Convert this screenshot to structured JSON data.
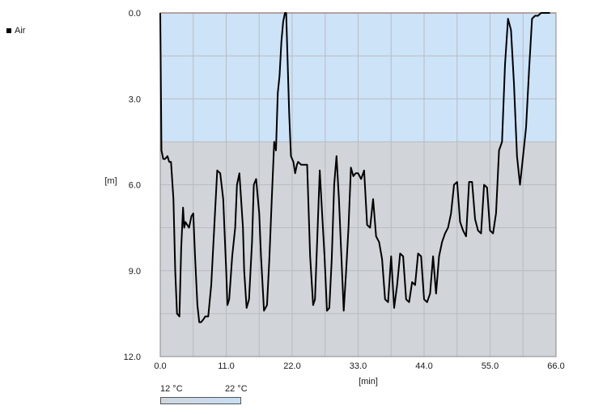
{
  "legend": {
    "series_name": "Air"
  },
  "temperature_scale": {
    "low_label": "12 °C",
    "high_label": "22 °C",
    "low_color": "#cfd6df",
    "high_color": "#c7def5"
  },
  "chart_data": {
    "type": "line",
    "title": "",
    "xlabel": "[min]",
    "ylabel": "[m]",
    "xlim": [
      0,
      66
    ],
    "ylim": [
      0,
      12
    ],
    "y_inverted": true,
    "x_ticks": [
      "0.0",
      "11.0",
      "22.0",
      "33.0",
      "44.0",
      "55.0",
      "66.0"
    ],
    "y_ticks": [
      "0.0",
      "3.0",
      "6.0",
      "9.0",
      "12.0"
    ],
    "grid": true,
    "legend_position": "top-left",
    "background_bands": [
      {
        "from_depth": 0,
        "to_depth": 4.5,
        "color": "#cde3f8"
      },
      {
        "from_depth": 4.5,
        "to_depth": 12,
        "color": "#d1d4d8"
      }
    ],
    "surface_line_color": "#e08a70",
    "series": [
      {
        "name": "Air",
        "color": "#000000",
        "x": [
          0,
          0.2,
          0.5,
          0.8,
          1.2,
          1.5,
          1.8,
          2.2,
          2.5,
          2.8,
          3.2,
          3.5,
          3.8,
          4.0,
          4.2,
          4.5,
          4.8,
          5.2,
          5.5,
          5.8,
          6.2,
          6.5,
          6.8,
          7.2,
          7.5,
          8.0,
          8.5,
          9.0,
          9.5,
          10.0,
          10.5,
          10.8,
          11.0,
          11.2,
          11.5,
          12.0,
          12.5,
          12.8,
          13.2,
          13.8,
          14.0,
          14.4,
          14.8,
          15.3,
          15.6,
          16.0,
          16.5,
          16.8,
          17.3,
          17.8,
          18.2,
          18.6,
          19.0,
          19.3,
          19.6,
          19.9,
          20.2,
          20.5,
          20.8,
          21.0,
          21.5,
          21.8,
          22.2,
          22.5,
          22.8,
          23.0,
          23.5,
          24.0,
          24.5,
          25.0,
          25.5,
          25.8,
          26.2,
          26.6,
          27.0,
          27.4,
          27.8,
          28.2,
          28.6,
          29.0,
          29.4,
          29.8,
          30.2,
          30.6,
          31.0,
          31.4,
          31.8,
          32.2,
          32.6,
          33.0,
          33.5,
          34.0,
          34.5,
          35.0,
          35.5,
          36.0,
          36.5,
          37.0,
          37.5,
          38.0,
          38.5,
          39.0,
          39.5,
          40.0,
          40.5,
          41.0,
          41.5,
          42.0,
          42.5,
          43.0,
          43.5,
          44.0,
          44.5,
          45.0,
          45.5,
          46.0,
          46.5,
          47.0,
          47.5,
          48.0,
          48.5,
          49.0,
          49.5,
          50.0,
          50.5,
          51.0,
          51.5,
          52.0,
          52.5,
          53.0,
          53.5,
          54.0,
          54.5,
          55.0,
          55.5,
          56.0,
          56.5,
          57.0,
          57.5,
          58.0,
          58.5,
          59.0,
          59.5,
          60.0,
          60.5,
          61.0,
          61.5,
          62.0,
          62.5,
          63.0,
          63.5,
          64.0,
          64.5,
          65.0
        ],
        "y": [
          0.0,
          4.8,
          5.1,
          5.1,
          5.0,
          5.2,
          5.2,
          6.5,
          9.0,
          10.5,
          10.6,
          8.2,
          6.8,
          7.5,
          7.3,
          7.4,
          7.5,
          7.1,
          7.0,
          8.5,
          10.2,
          10.8,
          10.8,
          10.7,
          10.6,
          10.6,
          9.5,
          7.5,
          5.5,
          5.6,
          6.5,
          8.0,
          9.0,
          10.2,
          10.0,
          8.5,
          7.5,
          6.0,
          5.6,
          7.5,
          9.0,
          10.3,
          10.0,
          8.0,
          6.0,
          5.8,
          7.0,
          8.5,
          10.4,
          10.2,
          8.6,
          6.5,
          4.5,
          4.8,
          2.8,
          2.2,
          1.0,
          0.3,
          0.0,
          0.0,
          3.5,
          5.0,
          5.2,
          5.6,
          5.3,
          5.2,
          5.3,
          5.3,
          5.3,
          8.5,
          10.2,
          10.0,
          7.8,
          5.5,
          7.0,
          8.5,
          10.4,
          10.3,
          8.6,
          6.0,
          5.0,
          6.5,
          8.5,
          10.4,
          9.0,
          7.5,
          5.4,
          5.7,
          5.6,
          5.6,
          5.8,
          5.5,
          7.4,
          7.5,
          6.5,
          7.8,
          8.0,
          8.6,
          10.0,
          10.1,
          8.5,
          10.3,
          9.5,
          8.4,
          8.5,
          10.0,
          10.1,
          9.4,
          9.5,
          8.4,
          8.5,
          10.0,
          10.1,
          9.8,
          8.5,
          9.8,
          8.5,
          8.0,
          7.7,
          7.5,
          7.0,
          6.0,
          5.9,
          7.3,
          7.6,
          7.8,
          5.9,
          5.9,
          7.2,
          7.6,
          7.7,
          6.0,
          6.1,
          7.6,
          7.7,
          7.0,
          4.8,
          4.5,
          1.8,
          0.2,
          0.6,
          2.5,
          5.0,
          6.0,
          5.0,
          4.0,
          2.0,
          0.2,
          0.1,
          0.1,
          0.0,
          0.0,
          0.0,
          0.0
        ]
      }
    ]
  }
}
